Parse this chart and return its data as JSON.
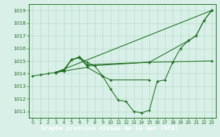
{
  "line_color": "#1a6b1a",
  "bg_color": "#d8f0e8",
  "grid_color": "#b8d8c8",
  "title": "Graphe pression niveau de la mer (hPa)",
  "ylim": [
    1010.5,
    1019.5
  ],
  "yticks": [
    1011,
    1012,
    1013,
    1014,
    1015,
    1016,
    1017,
    1018,
    1019
  ],
  "xticks": [
    0,
    1,
    2,
    3,
    4,
    5,
    6,
    7,
    8,
    9,
    10,
    11,
    12,
    13,
    14,
    15,
    16,
    17,
    18,
    19,
    20,
    21,
    22,
    23
  ],
  "series": [
    {
      "x": [
        0,
        1,
        2,
        3,
        4,
        5,
        6,
        7,
        8,
        9,
        10,
        11,
        12,
        13,
        14,
        15,
        16,
        17,
        18,
        19,
        20,
        21,
        22,
        23
      ],
      "y": [
        1013.8,
        1013.9,
        1014.0,
        1014.1,
        1014.2,
        1015.1,
        1015.3,
        1014.9,
        1014.6,
        1013.8,
        1012.8,
        1011.9,
        1011.8,
        1011.0,
        1010.9,
        1011.1,
        1013.4,
        1013.5,
        1014.9,
        1016.0,
        1016.6,
        1017.0,
        1018.2,
        1019.0
      ]
    },
    {
      "x": [
        3,
        23
      ],
      "y": [
        1014.1,
        1019.0
      ]
    },
    {
      "x": [
        3,
        4,
        5,
        6,
        7,
        15,
        20,
        21,
        22,
        23
      ],
      "y": [
        1014.1,
        1014.2,
        1015.1,
        1015.3,
        1014.7,
        1014.9,
        1016.6,
        1017.0,
        1018.2,
        1019.0
      ]
    },
    {
      "x": [
        3,
        4,
        5,
        6,
        7,
        15,
        23
      ],
      "y": [
        1014.1,
        1014.3,
        1015.1,
        1015.25,
        1014.6,
        1014.9,
        1015.0
      ]
    },
    {
      "x": [
        3,
        7,
        9,
        10,
        15
      ],
      "y": [
        1014.1,
        1014.5,
        1013.8,
        1013.5,
        1013.5
      ]
    }
  ],
  "title_bg": "#2d7a2d",
  "title_fg": "#ffffff"
}
